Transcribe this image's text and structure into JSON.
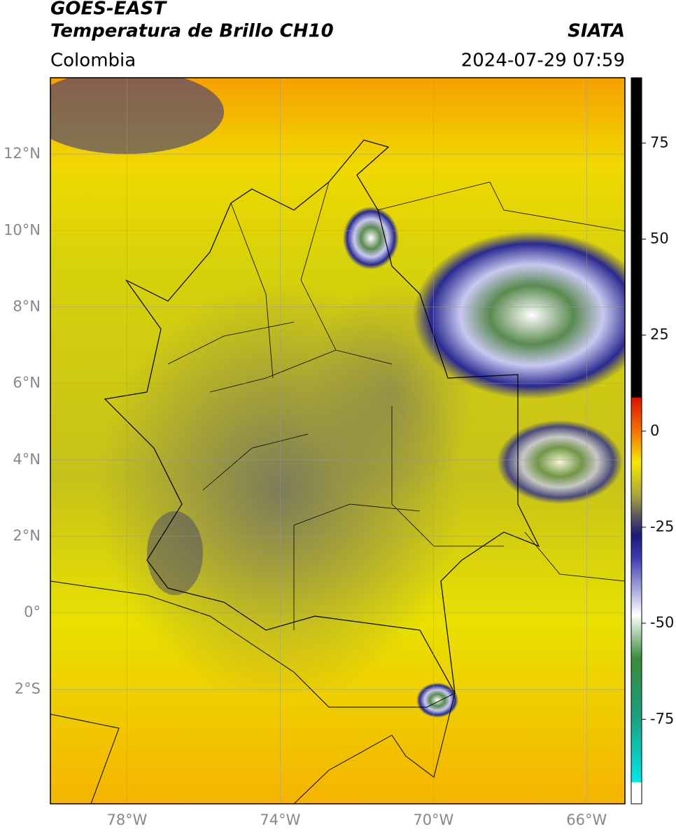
{
  "header": {
    "title": "GOES-EAST",
    "subtitle": "Temperatura de Brillo CH10",
    "source": "SIATA",
    "region": "Colombia",
    "datetime": "2024-07-29 07:59"
  },
  "map": {
    "xlim": [
      -80,
      -65
    ],
    "ylim": [
      -5,
      14
    ],
    "xticks": [
      {
        "value": -78,
        "label": "78°W"
      },
      {
        "value": -74,
        "label": "74°W"
      },
      {
        "value": -70,
        "label": "70°W"
      },
      {
        "value": -66,
        "label": "66°W"
      }
    ],
    "yticks": [
      {
        "value": -2,
        "label": "2°S"
      },
      {
        "value": 0,
        "label": "0°"
      },
      {
        "value": 2,
        "label": "2°N"
      },
      {
        "value": 4,
        "label": "4°N"
      },
      {
        "value": 6,
        "label": "6°N"
      },
      {
        "value": 8,
        "label": "8°N"
      },
      {
        "value": 10,
        "label": "10°N"
      },
      {
        "value": 12,
        "label": "12°N"
      }
    ],
    "grid": true
  },
  "colorbar": {
    "lim": [
      -97,
      92
    ],
    "ticks": [
      75,
      50,
      25,
      0,
      -25,
      -50,
      -75
    ]
  }
}
